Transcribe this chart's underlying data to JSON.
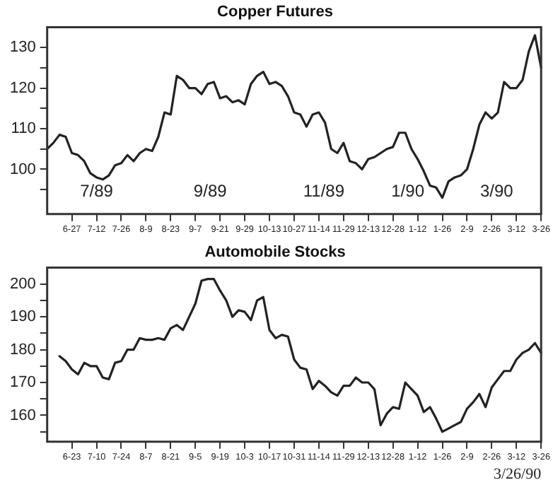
{
  "chart_data": [
    {
      "type": "line",
      "title": "Copper Futures",
      "categories": [
        null,
        null,
        null,
        null,
        "6-27",
        null,
        null,
        null,
        "7-12",
        null,
        null,
        null,
        "7-26",
        null,
        null,
        null,
        "8-9",
        null,
        null,
        null,
        "8-23",
        null,
        null,
        null,
        "9-7",
        null,
        null,
        null,
        "9-21",
        null,
        null,
        null,
        "9-29",
        null,
        null,
        null,
        "10-13",
        null,
        null,
        null,
        "10-27",
        null,
        null,
        null,
        "11-14",
        null,
        null,
        null,
        "11-29",
        null,
        null,
        null,
        "12-13",
        null,
        null,
        null,
        "12-28",
        null,
        null,
        null,
        "1-12",
        null,
        null,
        null,
        "1-26",
        null,
        null,
        null,
        "2-9",
        null,
        null,
        null,
        "2-26",
        null,
        null,
        null,
        "3-12",
        null,
        null,
        null,
        "3-26"
      ],
      "series": [
        {
          "color": "#222222",
          "values": [
            105,
            106.5,
            108.5,
            108,
            104,
            103.5,
            102,
            99,
            98,
            97.5,
            98.5,
            101,
            101.5,
            103.5,
            102,
            104,
            105,
            104.5,
            108,
            114,
            113.5,
            123,
            122,
            120,
            120,
            118.5,
            121,
            121.5,
            117.5,
            118,
            116.5,
            117,
            116,
            121,
            123,
            124,
            121,
            121.5,
            120.5,
            118,
            114,
            113.5,
            110.5,
            113.5,
            114,
            111.5,
            105,
            104,
            106.5,
            102,
            101.5,
            100,
            102.5,
            103,
            104,
            105,
            105.5,
            109,
            109,
            105,
            102.5,
            99.5,
            96,
            95.5,
            93,
            97,
            98,
            98.5,
            100,
            105,
            111,
            114,
            112.5,
            114,
            121.5,
            120,
            120,
            122,
            129,
            133,
            125
          ]
        }
      ],
      "ylim": [
        89,
        135
      ],
      "yticks": [
        {
          "value": 95,
          "label": null
        },
        100,
        {
          "value": 105,
          "label": null
        },
        110,
        {
          "value": 115,
          "label": null
        },
        120,
        {
          "value": 125,
          "label": null
        },
        130
      ],
      "annotations": [
        "7/89",
        "9/89",
        "11/89",
        "1/90",
        "3/90"
      ],
      "grid": false,
      "legend": false,
      "marker": "none",
      "line_style": "solid"
    },
    {
      "type": "line",
      "title": "Automobile Stocks",
      "categories": [
        null,
        null,
        null,
        null,
        "6-23",
        null,
        null,
        null,
        "7-10",
        null,
        null,
        null,
        "7-24",
        null,
        null,
        null,
        "8-7",
        null,
        null,
        null,
        "8-21",
        null,
        null,
        null,
        "9-5",
        null,
        null,
        null,
        "9-19",
        null,
        null,
        null,
        "10-3",
        null,
        null,
        null,
        "10-17",
        null,
        null,
        null,
        "10-31",
        null,
        null,
        null,
        "11-14",
        null,
        null,
        null,
        "11-29",
        null,
        null,
        null,
        "12-13",
        null,
        null,
        null,
        "12-28",
        null,
        null,
        null,
        "1-12",
        null,
        null,
        null,
        "1-26",
        null,
        null,
        null,
        "2-9",
        null,
        null,
        null,
        "2-26",
        null,
        null,
        null,
        "3-12",
        null,
        null,
        null,
        "3-26"
      ],
      "series": [
        {
          "color": "#222222",
          "values": [
            null,
            null,
            178,
            176.5,
            174,
            172.5,
            176,
            175,
            175,
            171.5,
            171,
            176,
            176.5,
            180,
            180,
            183.5,
            183,
            183,
            183.5,
            183,
            186.5,
            187.5,
            186,
            190,
            194,
            201,
            201.5,
            201.5,
            198,
            195,
            190,
            192,
            191.5,
            189,
            195,
            196,
            186,
            183.5,
            184.5,
            184,
            177,
            174.5,
            174,
            168,
            170.5,
            169,
            167,
            166,
            169,
            169,
            171.5,
            170,
            170,
            168,
            157,
            160.5,
            162.5,
            162,
            170,
            168,
            166,
            161,
            162.5,
            159,
            155,
            156,
            157,
            158,
            162,
            164,
            166.5,
            162.5,
            168.5,
            171,
            173.5,
            173.5,
            177,
            179,
            180,
            182,
            179
          ]
        }
      ],
      "ylim": [
        152,
        205
      ],
      "yticks": [
        {
          "value": 155,
          "label": null
        },
        160,
        {
          "value": 165,
          "label": null
        },
        170,
        {
          "value": 175,
          "label": null
        },
        180,
        {
          "value": 185,
          "label": null
        },
        190,
        {
          "value": 195,
          "label": null
        },
        200
      ],
      "annotations": [
        "3/26/90"
      ],
      "grid": false,
      "legend": false,
      "marker": "none",
      "line_style": "solid"
    }
  ]
}
